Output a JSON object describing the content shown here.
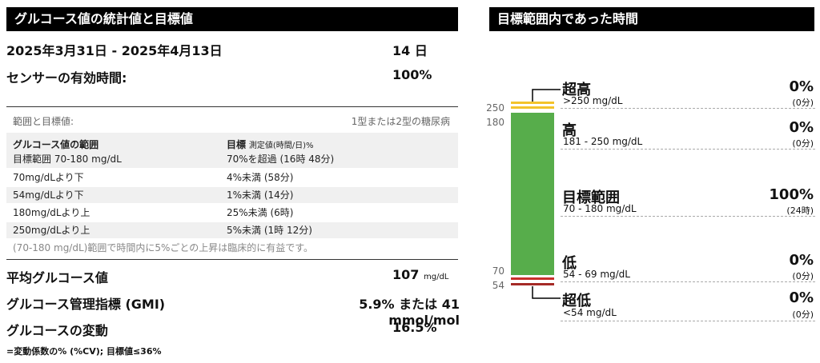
{
  "left": {
    "title": "グルコース値の統計値と目標値",
    "date_range": "2025年3月31日 - 2025年4月13日",
    "days": "14 日",
    "sensor_label": "センサーの有効時間:",
    "sensor_value": "100%",
    "table_label": "範囲と目標値:",
    "table_type": "1型または2型の糖尿病",
    "header_col1": "グルコース値の範囲",
    "header_col2_bold": "目標",
    "header_col2_small": "測定値(時間/日)%",
    "target_range_label": "目標範囲 70-180 mg/dL",
    "target_range_value": "70%を超過 (16時 48分)",
    "rows": [
      {
        "label": "70mg/dLより下",
        "value": "4%未満 (58分)"
      },
      {
        "label": "54mg/dLより下",
        "value": "1%未満 (14分)"
      },
      {
        "label": "180mg/dLより上",
        "value": "25%未満 (6時)"
      },
      {
        "label": "250mg/dLより上",
        "value": "5%未満 (1時 12分)"
      }
    ],
    "note": "(70-180 mg/dL)範囲で時間内に5%ごとの上昇は臨床的に有益です。",
    "avg_label": "平均グルコース値",
    "avg_value": "107",
    "avg_unit": "mg/dL",
    "gmi_label": "グルコース管理指標 (GMI)",
    "gmi_value": "5.9% または 41 mmol/mol",
    "var_label": "グルコースの変動",
    "var_value": "16.5%",
    "var_note": "=変動係数の% (%CV); 目標値≤36%"
  },
  "right": {
    "title": "目標範囲内であった時間",
    "axis_labels": [
      "250",
      "180",
      "70",
      "54"
    ],
    "ranges": [
      {
        "name": "超高",
        "sub": ">250 mg/dL",
        "pct": "0%",
        "pct_sub": "(0分)"
      },
      {
        "name": "高",
        "sub": "181 - 250 mg/dL",
        "pct": "0%",
        "pct_sub": "(0分)"
      },
      {
        "name": "目標範囲",
        "sub": "70 - 180 mg/dL",
        "pct": "100%",
        "pct_sub": "(24時)"
      },
      {
        "name": "低",
        "sub": "54 - 69 mg/dL",
        "pct": "0%",
        "pct_sub": "(0分)"
      },
      {
        "name": "超低",
        "sub": "<54 mg/dL",
        "pct": "0%",
        "pct_sub": "(0分)"
      }
    ],
    "colors": {
      "very_high": "#f3c32b",
      "high": "#f3c32b",
      "target": "#57ad4b",
      "low": "#c8302c",
      "very_low": "#a52a26"
    }
  }
}
